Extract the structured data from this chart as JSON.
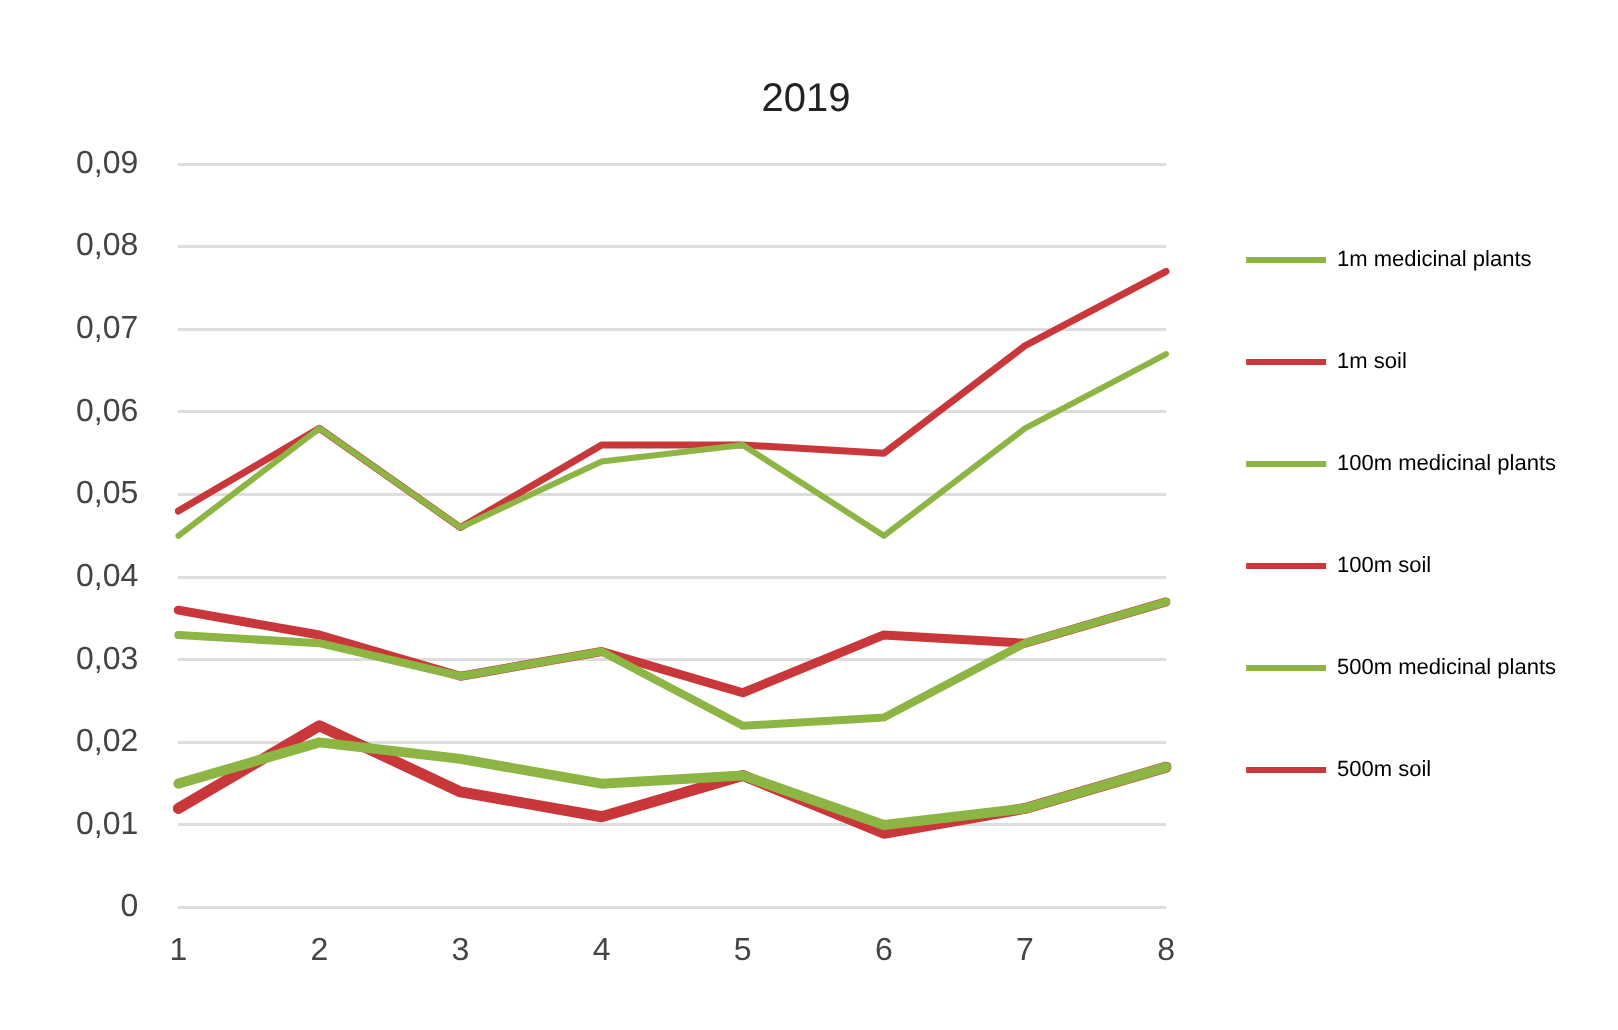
{
  "chart_data": {
    "type": "line",
    "title": "2019",
    "categories": [
      "1",
      "2",
      "3",
      "4",
      "5",
      "6",
      "7",
      "8"
    ],
    "series": [
      {
        "name": "1m medicinal plants",
        "color": "#8db544",
        "values": [
          0.045,
          0.058,
          0.046,
          0.054,
          0.056,
          0.045,
          0.058,
          0.067
        ]
      },
      {
        "name": "1m soil",
        "color": "#c9373a",
        "values": [
          0.048,
          0.058,
          0.046,
          0.056,
          0.056,
          0.055,
          0.068,
          0.077
        ]
      },
      {
        "name": "100m medicinal plants",
        "color": "#8db544",
        "values": [
          0.033,
          0.032,
          0.028,
          0.031,
          0.022,
          0.023,
          0.032,
          0.037
        ]
      },
      {
        "name": "100m soil",
        "color": "#c9373a",
        "values": [
          0.036,
          0.033,
          0.028,
          0.031,
          0.026,
          0.033,
          0.032,
          0.037
        ]
      },
      {
        "name": "500m medicinal plants",
        "color": "#8db544",
        "values": [
          0.015,
          0.02,
          0.018,
          0.015,
          0.016,
          0.01,
          0.012,
          0.017
        ]
      },
      {
        "name": "500m soil",
        "color": "#c9373a",
        "values": [
          0.012,
          0.022,
          0.014,
          0.011,
          0.016,
          0.009,
          0.012,
          0.017
        ]
      }
    ],
    "ylim": [
      0,
      0.09
    ],
    "yticks": [
      0,
      {
        "value": 0.01,
        "label": "0,01"
      },
      {
        "value": 0.02,
        "label": "0,02"
      },
      {
        "value": 0.03,
        "label": "0,03"
      },
      {
        "value": 0.04,
        "label": "0,04"
      },
      {
        "value": 0.05,
        "label": "0,05"
      },
      {
        "value": 0.06,
        "label": "0,06"
      },
      {
        "value": 0.07,
        "label": "0,07"
      },
      {
        "value": 0.08,
        "label": "0,08"
      },
      {
        "value": 0.09,
        "label": "0,09"
      }
    ],
    "grid": "y",
    "legend": "right",
    "marker": "none",
    "line_style": "solid"
  }
}
